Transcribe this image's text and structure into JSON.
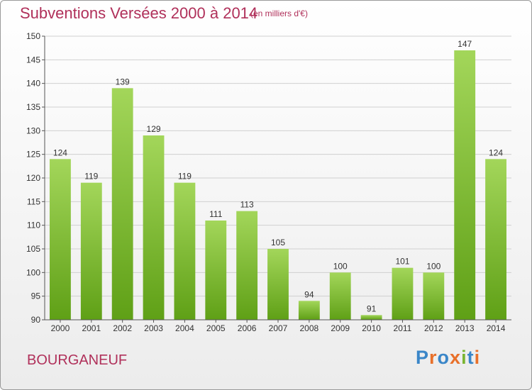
{
  "title": "Subventions Versées 2000 à 2014",
  "subtitle": "(en milliers d'€)",
  "footer_label": "BOURGANEUF",
  "logo": {
    "text": "Proxiti",
    "colors": [
      "#3a86c8",
      "#e8702a",
      "#3a86c8",
      "#e8702a",
      "#7ab532",
      "#3a86c8",
      "#e8702a"
    ]
  },
  "colors": {
    "title": "#b0305a",
    "bar_top": "#a3d65a",
    "bar_bottom": "#5fa016",
    "grid": "#d0d0d0"
  },
  "chart_data": {
    "type": "bar",
    "title": "Subventions Versées 2000 à 2014",
    "subtitle": "(en milliers d'€)",
    "categories": [
      "2000",
      "2001",
      "2002",
      "2003",
      "2004",
      "2005",
      "2006",
      "2007",
      "2008",
      "2009",
      "2010",
      "2011",
      "2012",
      "2013",
      "2014"
    ],
    "values": [
      124,
      119,
      139,
      129,
      119,
      111,
      113,
      105,
      94,
      100,
      91,
      101,
      100,
      147,
      124
    ],
    "ylim": [
      90,
      150
    ],
    "yticks": [
      90,
      95,
      100,
      105,
      110,
      115,
      120,
      125,
      130,
      135,
      140,
      145,
      150
    ],
    "grid": true
  }
}
